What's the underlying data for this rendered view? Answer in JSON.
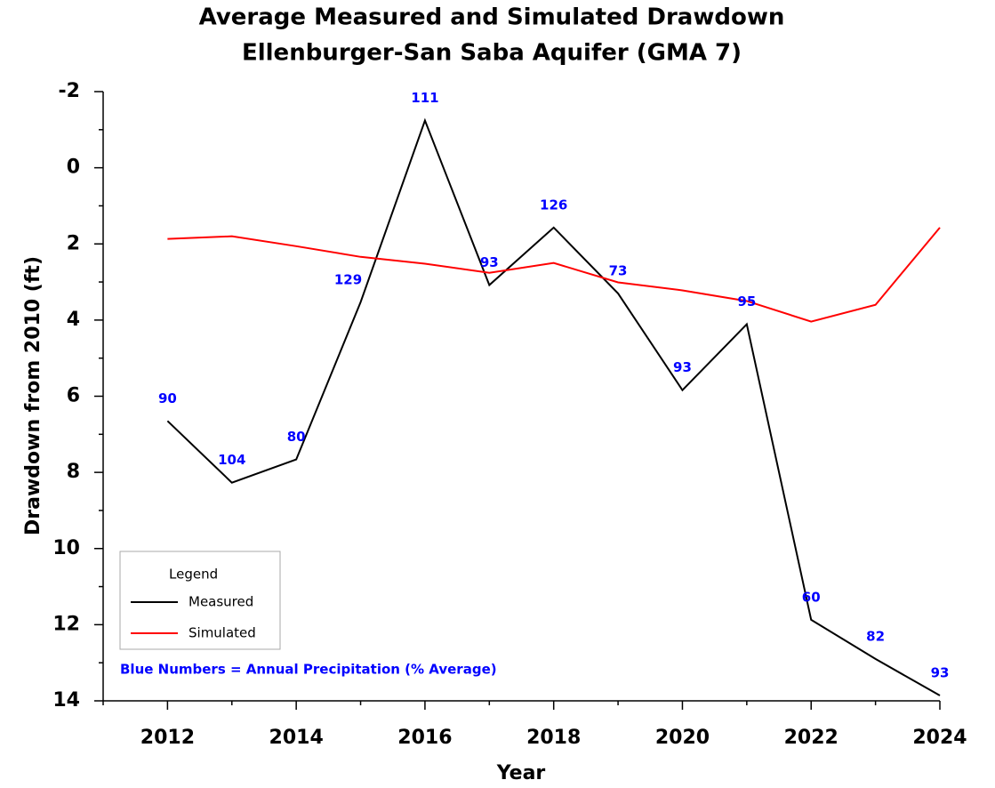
{
  "chart_data": {
    "type": "line",
    "title": "Average Measured and Simulated Drawdown",
    "subtitle": "Ellenburger-San Saba Aquifer (GMA 7)",
    "x_label": "Year",
    "y_label": "Drawdown from 2010 (ft)",
    "x": [
      2012,
      2013,
      2014,
      2015,
      2016,
      2017,
      2018,
      2019,
      2020,
      2021,
      2022,
      2023,
      2024
    ],
    "series": [
      {
        "name": "Measured",
        "color": "#000000",
        "values": [
          6.65,
          8.27,
          7.66,
          3.53,
          -1.24,
          3.08,
          1.57,
          3.3,
          5.84,
          4.11,
          11.87,
          12.9,
          13.86
        ]
      },
      {
        "name": "Simulated",
        "color": "#ff0000",
        "values": [
          1.87,
          1.8,
          2.06,
          2.34,
          2.52,
          2.76,
          2.5,
          3.01,
          3.22,
          3.5,
          4.04,
          3.6,
          1.57
        ]
      }
    ],
    "precipitation": [
      90,
      104,
      80,
      129,
      111,
      93,
      126,
      73,
      93,
      95,
      60,
      82,
      93
    ],
    "precipitation_color": "#0000ff",
    "xlim": [
      2011,
      2024
    ],
    "xticks": [
      2012,
      2014,
      2016,
      2018,
      2020,
      2022,
      2024
    ],
    "xticks_minor": [
      2011,
      2013,
      2015,
      2017,
      2019,
      2021,
      2023
    ],
    "ylim": [
      -2,
      14
    ],
    "y_inverted": true,
    "yticks": [
      -2,
      0,
      2,
      4,
      6,
      8,
      10,
      12,
      14
    ],
    "yticks_minor": [
      -1,
      1,
      3,
      5,
      7,
      9,
      11,
      13
    ],
    "legend_title": "Legend",
    "legend_position": "lower left",
    "note": "Blue Numbers = Annual Precipitation (% Average)"
  }
}
